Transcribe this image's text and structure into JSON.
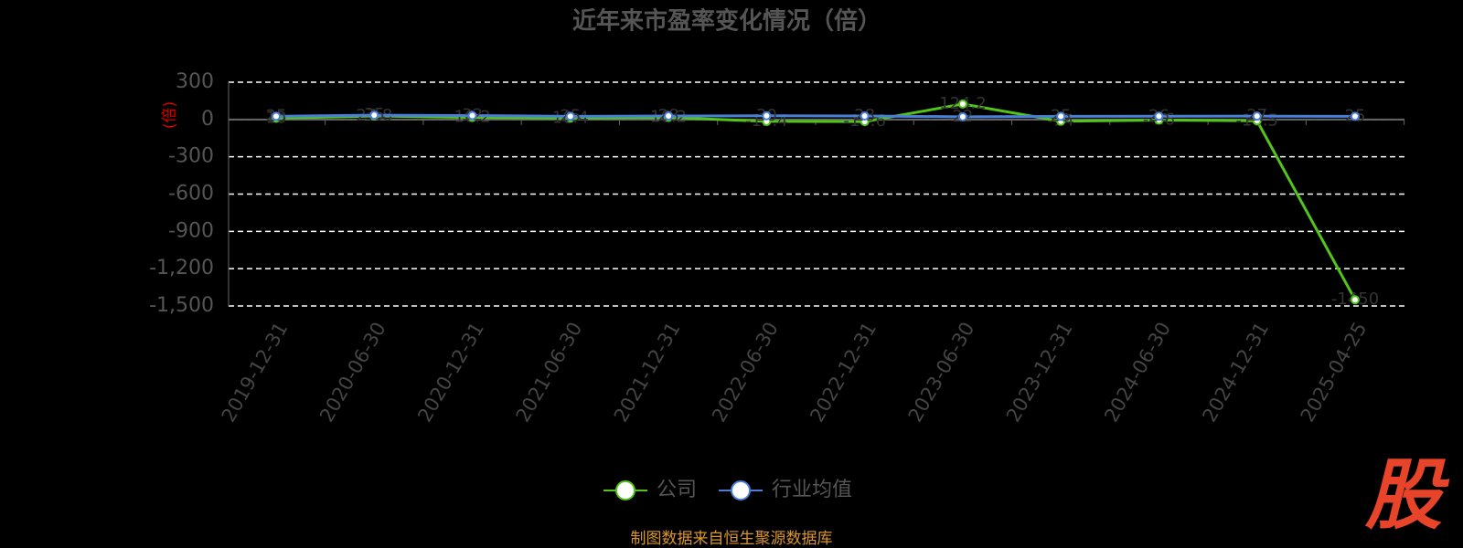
{
  "chart_data": {
    "type": "line",
    "title": "近年来市盈率变化情况（倍）",
    "y_label": "(倍)",
    "categories": [
      "2019-12-31",
      "2020-06-30",
      "2020-12-31",
      "2021-06-30",
      "2021-12-31",
      "2022-06-30",
      "2022-12-31",
      "2023-06-30",
      "2023-12-31",
      "2024-06-30",
      "2024-12-31",
      "2025-04-25"
    ],
    "series": [
      {
        "name": "公司",
        "color": "#52c41a",
        "values": [
          10,
          27.8,
          16.2,
          10.4,
          16.2,
          -15.4,
          -16.6,
          124.2,
          -14.0,
          -4.6,
          -10.5,
          -1450
        ]
      },
      {
        "name": "行业均值",
        "color": "#4a7fd8",
        "values": [
          25,
          35,
          32,
          25,
          28,
          30,
          28,
          22,
          25,
          26,
          27,
          25
        ]
      }
    ],
    "ylim": [
      -1500,
      300
    ],
    "yticks": [
      300,
      0,
      -300,
      -600,
      -900,
      {
        "value": -1200,
        "label": "-1,200"
      },
      {
        "value": -1500,
        "label": "-1,500"
      }
    ],
    "grid": true,
    "source": "制图数据来自恒生聚源数据库",
    "logo": "股"
  }
}
